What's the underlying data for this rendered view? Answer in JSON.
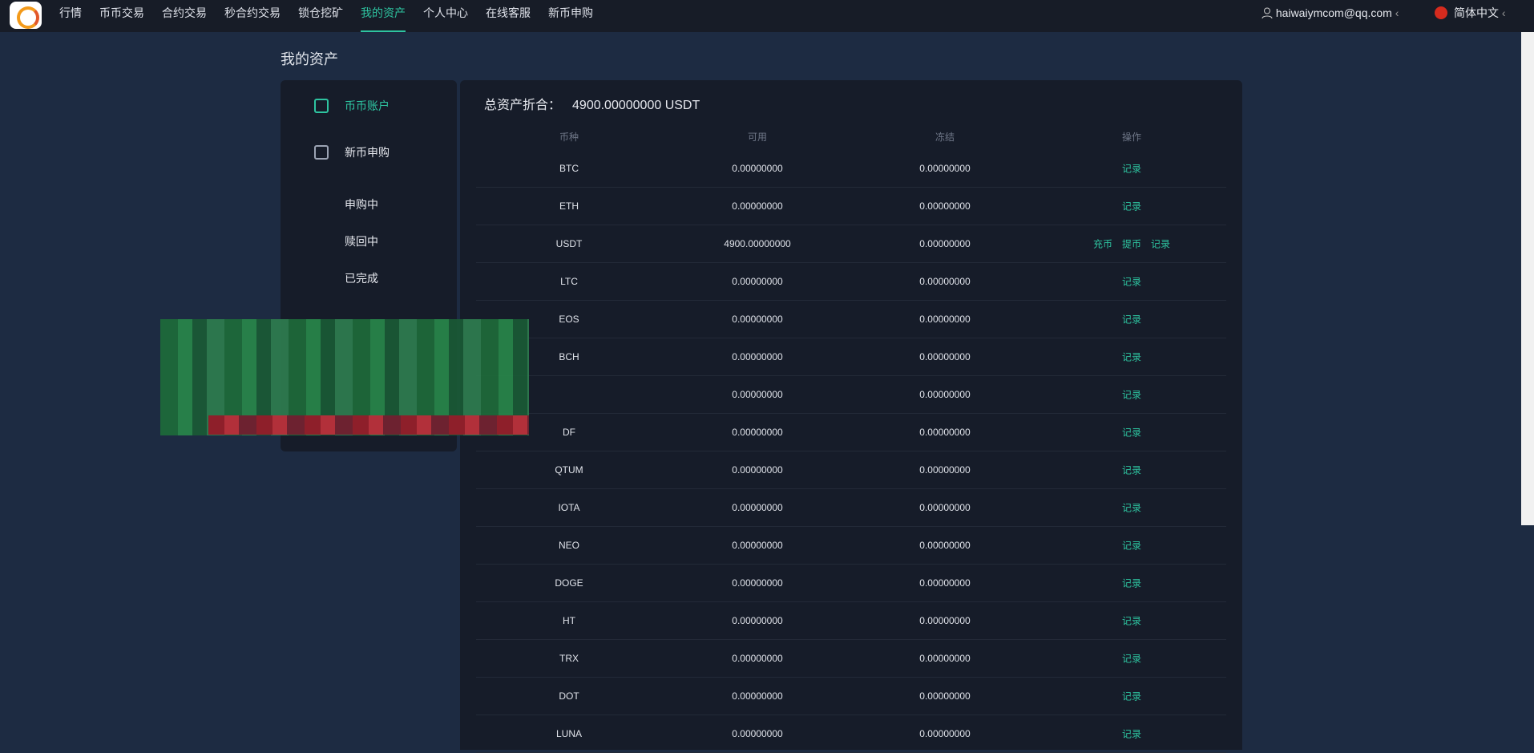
{
  "nav": {
    "items": [
      "行情",
      "币币交易",
      "合约交易",
      "秒合约交易",
      "锁仓挖矿",
      "我的资产",
      "个人中心",
      "在线客服",
      "新币申购"
    ],
    "active": 5,
    "user": "haiwaiymcom@qq.com",
    "language": "简体中文"
  },
  "page": {
    "title": "我的资产"
  },
  "sidebar": {
    "items": [
      "币币账户",
      "新币申购"
    ],
    "sub_items": [
      "申购中",
      "赎回中",
      "已完成"
    ]
  },
  "summary": {
    "label": "总资产折合：",
    "value": "4900.00000000 USDT"
  },
  "table": {
    "headers": [
      "币种",
      "可用",
      "冻结",
      "操作"
    ],
    "rows": [
      [
        "BTC",
        "0.00000000",
        "0.00000000",
        [
          "记录"
        ]
      ],
      [
        "ETH",
        "0.00000000",
        "0.00000000",
        [
          "记录"
        ]
      ],
      [
        "USDT",
        "4900.00000000",
        "0.00000000",
        [
          "充币",
          "提币",
          "记录"
        ]
      ],
      [
        "LTC",
        "0.00000000",
        "0.00000000",
        [
          "记录"
        ]
      ],
      [
        "EOS",
        "0.00000000",
        "0.00000000",
        [
          "记录"
        ]
      ],
      [
        "BCH",
        "0.00000000",
        "0.00000000",
        [
          "记录"
        ]
      ],
      [
        null,
        "0.00000000",
        "0.00000000",
        [
          "记录"
        ]
      ],
      [
        "DF",
        "0.00000000",
        "0.00000000",
        [
          "记录"
        ]
      ],
      [
        "QTUM",
        "0.00000000",
        "0.00000000",
        [
          "记录"
        ]
      ],
      [
        "IOTA",
        "0.00000000",
        "0.00000000",
        [
          "记录"
        ]
      ],
      [
        "NEO",
        "0.00000000",
        "0.00000000",
        [
          "记录"
        ]
      ],
      [
        "DOGE",
        "0.00000000",
        "0.00000000",
        [
          "记录"
        ]
      ],
      [
        "HT",
        "0.00000000",
        "0.00000000",
        [
          "记录"
        ]
      ],
      [
        "TRX",
        "0.00000000",
        "0.00000000",
        [
          "记录"
        ]
      ],
      [
        "DOT",
        "0.00000000",
        "0.00000000",
        [
          "记录"
        ]
      ],
      [
        "LUNA",
        "0.00000000",
        "0.00000000",
        [
          "记录"
        ]
      ]
    ]
  }
}
